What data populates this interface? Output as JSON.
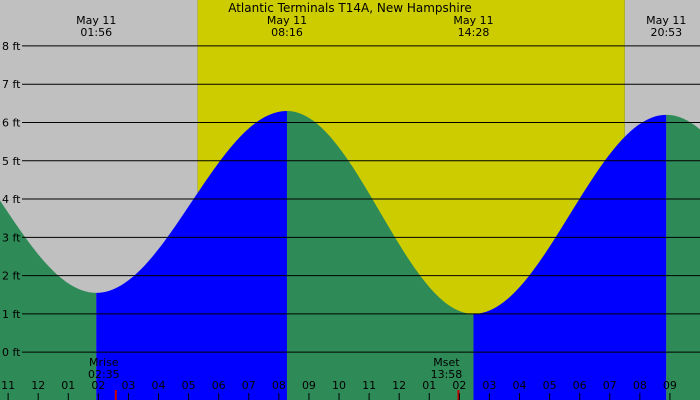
{
  "chart_data": {
    "type": "area",
    "title": "Atlantic Terminals T14A, New Hampshire",
    "xlabel": "",
    "ylabel": "",
    "unit": "ft",
    "ylim": [
      -1.25,
      9.2
    ],
    "y_ticks": [
      {
        "value": 0,
        "label": "0 ft"
      },
      {
        "value": 1,
        "label": "1 ft"
      },
      {
        "value": 2,
        "label": "2 ft"
      },
      {
        "value": 3,
        "label": "3 ft"
      },
      {
        "value": 4,
        "label": "4 ft"
      },
      {
        "value": 5,
        "label": "5 ft"
      },
      {
        "value": 6,
        "label": "6 ft"
      },
      {
        "value": 7,
        "label": "7 ft"
      },
      {
        "value": 8,
        "label": "8 ft"
      }
    ],
    "xlim": [
      -1.27,
      22.0
    ],
    "x_hours": [
      -1,
      0,
      1,
      2,
      3,
      4,
      5,
      6,
      7,
      8,
      9,
      10,
      11,
      12,
      13,
      14,
      15,
      16,
      17,
      18,
      19,
      20,
      21
    ],
    "x_tick_labels": [
      "11",
      "12",
      "01",
      "02",
      "03",
      "04",
      "05",
      "06",
      "07",
      "08",
      "09",
      "10",
      "11",
      "12",
      "01",
      "02",
      "03",
      "04",
      "05",
      "06",
      "07",
      "08",
      "09"
    ],
    "series": [
      {
        "values": [
          {
            "time": 1.93,
            "height": 1.55,
            "date": "May 11",
            "label": "01:56"
          },
          {
            "time": 8.27,
            "height": 6.3,
            "date": "May 11",
            "label": "08:16"
          },
          {
            "time": 14.47,
            "height": 1.0,
            "date": "May 11",
            "label": "14:28"
          },
          {
            "time": 20.88,
            "height": 6.2,
            "date": "May 11",
            "label": "20:53"
          }
        ]
      }
    ],
    "daylight": {
      "sunrise_hour": 5.3,
      "sunset_hour": 19.5
    },
    "moon_events": [
      {
        "type": "rise",
        "label": "Mrise",
        "time": "02:35",
        "hour": 2.58
      },
      {
        "type": "set",
        "label": "Mset",
        "time": "13:58",
        "hour": 13.97
      }
    ],
    "colors": {
      "night": "#c0c0c0",
      "day": "#cccc00",
      "rising": "#0000ff",
      "falling": "#2e8b57",
      "grid": "#000000",
      "moon_tick": "#cc0000"
    }
  }
}
